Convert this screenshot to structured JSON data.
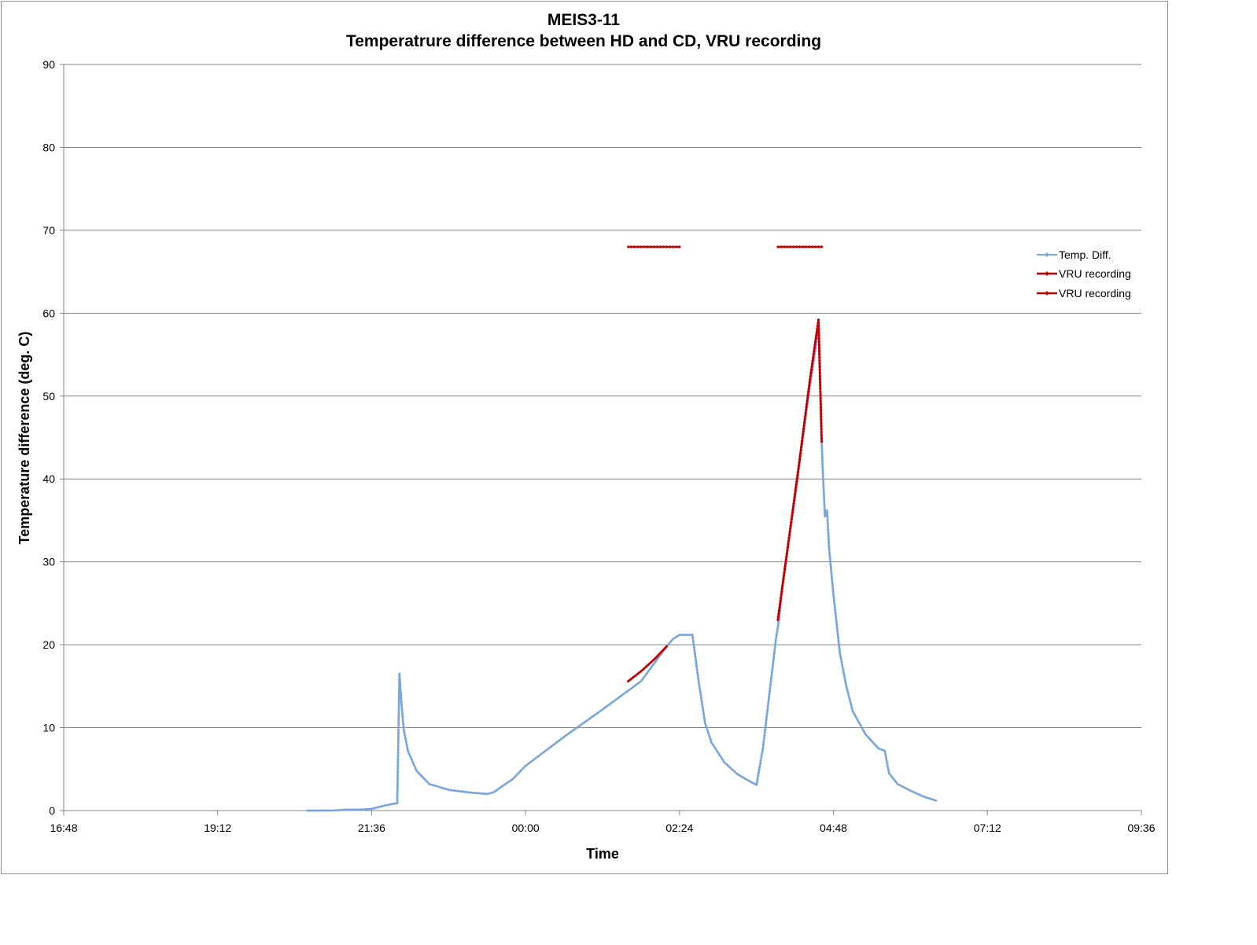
{
  "chart_data": {
    "type": "line",
    "title": "MEIS3-11",
    "subtitle": "Temperatrure difference between HD and CD, VRU recording",
    "xlabel": "Time",
    "ylabel": "Temperature difference (deg. C)",
    "x_ticks": [
      "16:48",
      "19:12",
      "21:36",
      "00:00",
      "02:24",
      "04:48",
      "07:12",
      "09:36"
    ],
    "x_range": [
      "16:48",
      "09:36"
    ],
    "ylim": [
      0,
      90
    ],
    "y_ticks": [
      0,
      10,
      20,
      30,
      40,
      50,
      60,
      70,
      80,
      90
    ],
    "grid": "horizontal",
    "legend_position": "right",
    "series": [
      {
        "name": "Temp. Diff.",
        "color": "#7aa6db",
        "points": [
          [
            "20:36",
            0.0
          ],
          [
            "20:48",
            0.0
          ],
          [
            "21:00",
            0.0
          ],
          [
            "21:12",
            0.1
          ],
          [
            "21:24",
            0.1
          ],
          [
            "21:36",
            0.2
          ],
          [
            "21:48",
            0.6
          ],
          [
            "22:00",
            0.9
          ],
          [
            "22:02",
            16.5
          ],
          [
            "22:04",
            12.8
          ],
          [
            "22:06",
            9.8
          ],
          [
            "22:10",
            7.2
          ],
          [
            "22:18",
            4.8
          ],
          [
            "22:30",
            3.2
          ],
          [
            "22:48",
            2.5
          ],
          [
            "23:06",
            2.2
          ],
          [
            "23:24",
            2.0
          ],
          [
            "23:30",
            2.2
          ],
          [
            "23:48",
            3.8
          ],
          [
            "00:00",
            5.4
          ],
          [
            "00:36",
            8.9
          ],
          [
            "01:12",
            12.2
          ],
          [
            "01:48",
            15.6
          ],
          [
            "02:12",
            19.8
          ],
          [
            "02:18",
            20.7
          ],
          [
            "02:24",
            21.2
          ],
          [
            "02:36",
            21.2
          ],
          [
            "02:42",
            15.5
          ],
          [
            "02:48",
            10.5
          ],
          [
            "02:54",
            8.2
          ],
          [
            "03:06",
            5.8
          ],
          [
            "03:18",
            4.4
          ],
          [
            "03:30",
            3.5
          ],
          [
            "03:36",
            3.1
          ],
          [
            "03:42",
            7.5
          ],
          [
            "03:48",
            14.0
          ],
          [
            "03:54",
            20.5
          ],
          [
            "03:57",
            23.0
          ],
          [
            "04:00",
            27.0
          ],
          [
            "04:12",
            37.8
          ],
          [
            "04:24",
            49.5
          ],
          [
            "04:32",
            56.5
          ],
          [
            "04:34",
            59.2
          ],
          [
            "04:37",
            44.5
          ],
          [
            "04:38",
            41.0
          ],
          [
            "04:40",
            35.5
          ],
          [
            "04:42",
            36.2
          ],
          [
            "04:44",
            31.5
          ],
          [
            "04:48",
            26.0
          ],
          [
            "04:54",
            19.0
          ],
          [
            "05:00",
            15.0
          ],
          [
            "05:06",
            12.0
          ],
          [
            "05:18",
            9.2
          ],
          [
            "05:30",
            7.5
          ],
          [
            "05:36",
            7.2
          ],
          [
            "05:40",
            4.5
          ],
          [
            "05:48",
            3.2
          ],
          [
            "06:00",
            2.4
          ],
          [
            "06:12",
            1.7
          ],
          [
            "06:24",
            1.2
          ]
        ]
      },
      {
        "name": "VRU recording",
        "color": "#c00000",
        "points": [
          [
            "01:36",
            15.6
          ],
          [
            "01:48",
            16.8
          ],
          [
            "02:00",
            18.2
          ],
          [
            "02:12",
            19.8
          ],
          [
            "01:36",
            68
          ],
          [
            "02:00",
            68
          ],
          [
            "02:24",
            68
          ]
        ]
      },
      {
        "name": "VRU recording",
        "color": "#c00000",
        "points": [
          [
            "03:56",
            23.0
          ],
          [
            "04:06",
            32.5
          ],
          [
            "04:16",
            42.0
          ],
          [
            "04:26",
            52.0
          ],
          [
            "04:34",
            59.2
          ],
          [
            "04:37",
            44.5
          ],
          [
            "03:56",
            68
          ],
          [
            "04:16",
            68
          ],
          [
            "04:37",
            68
          ]
        ]
      }
    ]
  }
}
